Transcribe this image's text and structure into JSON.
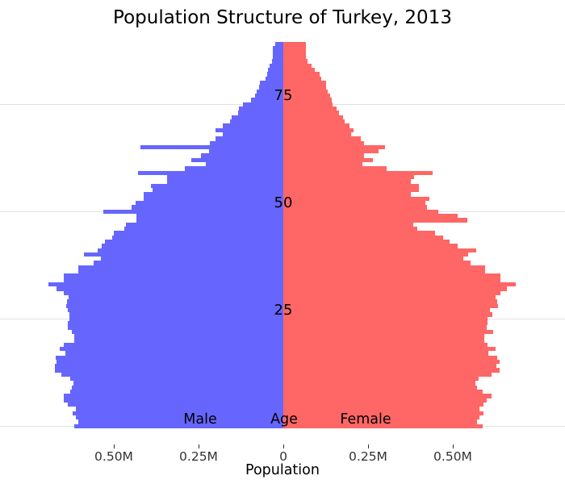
{
  "title": "Population Structure of Turkey, 2013",
  "chart_data": {
    "type": "bar",
    "subtype": "population-pyramid",
    "title": "Population Structure of Turkey, 2013",
    "xlabel": "Population",
    "ylabel": "Age",
    "units": "thousands of persons per single year of age",
    "age_min": 0,
    "age_max": 89,
    "age_gridlines": [
      0,
      25,
      50,
      75
    ],
    "age_tick_labels": [
      {
        "age": 25,
        "label": "25"
      },
      {
        "age": 50,
        "label": "50"
      },
      {
        "age": 75,
        "label": "75"
      }
    ],
    "x_ticks": [
      {
        "label": "0.50M",
        "value_thousands": -500
      },
      {
        "label": "0.25M",
        "value_thousands": -250
      },
      {
        "label": "0",
        "value_thousands": 0
      },
      {
        "label": "0.25M",
        "value_thousands": 250
      },
      {
        "label": "0.50M",
        "value_thousands": 500
      }
    ],
    "legend": {
      "shown": false
    },
    "grid": true,
    "series": [
      {
        "name": "Male",
        "side": "left",
        "color": "#6666ff",
        "values": [
          616,
          604,
          612,
          622,
          612,
          636,
          648,
          648,
          628,
          624,
          620,
          628,
          655,
          675,
          675,
          670,
          671,
          644,
          660,
          648,
          616,
          616,
          624,
          636,
          636,
          630,
          630,
          636,
          641,
          638,
          633,
          648,
          670,
          694,
          648,
          648,
          604,
          604,
          559,
          537,
          588,
          547,
          536,
          527,
          505,
          500,
          470,
          465,
          433,
          433,
          530,
          448,
          435,
          413,
          411,
          386,
          390,
          342,
          344,
          429,
          290,
          228,
          271,
          244,
          218,
          421,
          217,
          199,
          179,
          199,
          179,
          158,
          152,
          133,
          131,
          120,
          95,
          83,
          79,
          71,
          69,
          52,
          48,
          45,
          40,
          33,
          31,
          31,
          31,
          24
        ]
      },
      {
        "name": "Female",
        "side": "right",
        "color": "#ff6666",
        "values": [
          587,
          571,
          579,
          590,
          579,
          590,
          601,
          614,
          587,
          572,
          567,
          577,
          614,
          638,
          629,
          638,
          630,
          604,
          625,
          602,
          594,
          594,
          618,
          600,
          602,
          602,
          617,
          610,
          633,
          630,
          625,
          640,
          660,
          686,
          640,
          640,
          596,
          596,
          552,
          530,
          545,
          570,
          515,
          491,
          471,
          448,
          396,
          384,
          543,
          515,
          456,
          424,
          420,
          432,
          376,
          400,
          400,
          376,
          385,
          440,
          305,
          233,
          265,
          237,
          281,
          301,
          237,
          229,
          200,
          208,
          195,
          182,
          176,
          164,
          158,
          146,
          142,
          138,
          130,
          125,
          125,
          112,
          106,
          93,
          83,
          72,
          67,
          67,
          67,
          67
        ]
      }
    ],
    "annotations": {
      "male": "Male",
      "age": "Age",
      "female": "Female"
    }
  }
}
